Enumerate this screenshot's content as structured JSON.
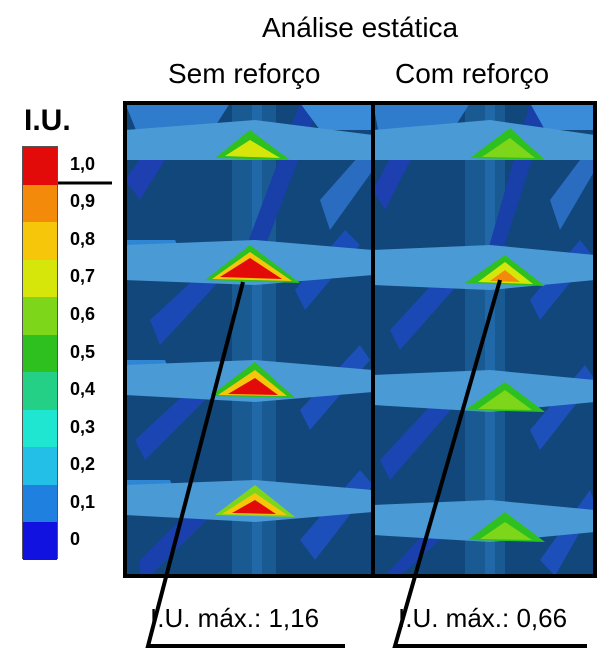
{
  "title": "Análise estática",
  "panels": [
    {
      "heading": "Sem reforço",
      "result": "I.U. máx.: 1,16"
    },
    {
      "heading": "Com reforço",
      "result": "I.U. máx.: 0,66"
    }
  ],
  "legend": {
    "title": "I.U.",
    "ticks": [
      "1,0",
      "0,9",
      "0,8",
      "0,7",
      "0,6",
      "0,5",
      "0,4",
      "0,3",
      "0,2",
      "0,1",
      "0"
    ],
    "colors": [
      "#e30a0a",
      "#f48a0a",
      "#f6c60a",
      "#d6e60a",
      "#7ed61a",
      "#2ec01e",
      "#24d085",
      "#1ee6d0",
      "#24bfe6",
      "#1f80e0",
      "#1212e0"
    ]
  }
}
